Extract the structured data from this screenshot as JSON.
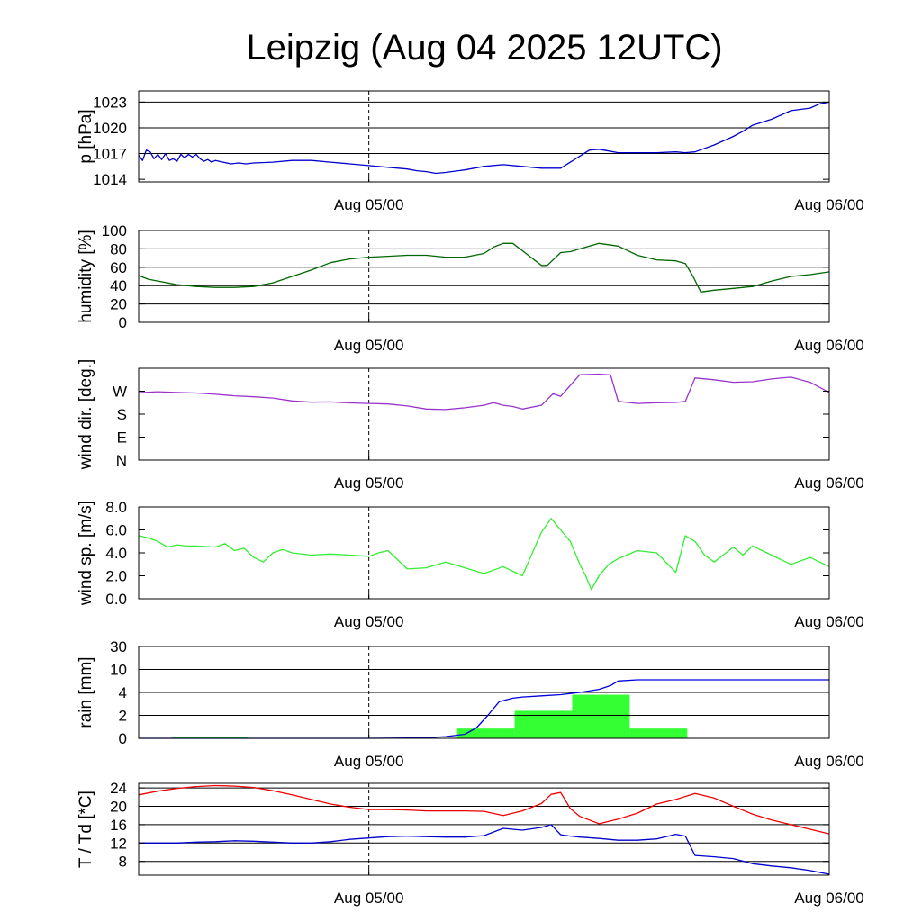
{
  "title": "Leipzig (Aug 04 2025 12UTC)",
  "x_tick_labels": [
    "Aug 05/00",
    "Aug 06/00"
  ],
  "chart_data": [
    {
      "type": "line",
      "ylabel": "p [hPa]",
      "ylim": [
        1013.7,
        1024.3
      ],
      "yticks": [
        1014,
        1017,
        1020,
        1023
      ],
      "ytick_labels": [
        "1014",
        "1017",
        "1020",
        "1023"
      ],
      "grid_y": [
        1017,
        1020,
        1023
      ],
      "xlim": [
        0,
        36
      ],
      "x_tick_hours": [
        12,
        36
      ],
      "x_tick_labels": [
        "Aug 05/00",
        "Aug 06/00"
      ],
      "marker_hour": 12,
      "series": [
        {
          "color": "#0000cc",
          "x": [
            0,
            0.2,
            0.4,
            0.6,
            0.8,
            1.0,
            1.2,
            1.4,
            1.6,
            1.8,
            2.0,
            2.2,
            2.4,
            2.6,
            2.8,
            3.0,
            3.2,
            3.4,
            3.6,
            3.8,
            4.0,
            4.4,
            4.8,
            5.2,
            5.6,
            6,
            7,
            8,
            9,
            10,
            11,
            12,
            13,
            14,
            14.5,
            15,
            15.5,
            16,
            17,
            18,
            19,
            20,
            21,
            22,
            22.5,
            23,
            23.5,
            24,
            24.5,
            25,
            26,
            27,
            28,
            28.5,
            29,
            30,
            31,
            31.5,
            32,
            33,
            34,
            35,
            35.5,
            36
          ],
          "y": [
            1016.8,
            1016.2,
            1017.4,
            1017.2,
            1016.4,
            1016.9,
            1016.3,
            1017.0,
            1016.2,
            1016.4,
            1016.1,
            1016.9,
            1016.5,
            1016.9,
            1016.6,
            1016.9,
            1016.4,
            1016.1,
            1016.3,
            1016.0,
            1016.2,
            1016.0,
            1015.8,
            1015.9,
            1015.8,
            1015.9,
            1016.0,
            1016.2,
            1016.2,
            1016.0,
            1015.8,
            1015.6,
            1015.4,
            1015.2,
            1015.0,
            1014.9,
            1014.7,
            1014.8,
            1015.1,
            1015.5,
            1015.7,
            1015.5,
            1015.3,
            1015.3,
            1016.0,
            1016.7,
            1017.4,
            1017.5,
            1017.3,
            1017.1,
            1017.1,
            1017.1,
            1017.2,
            1017.1,
            1017.2,
            1018.0,
            1019.0,
            1019.6,
            1020.3,
            1021.0,
            1022.0,
            1022.3,
            1022.8,
            1023.0
          ]
        }
      ]
    },
    {
      "type": "line",
      "ylabel": "humidity [%]",
      "ylim": [
        0,
        100
      ],
      "yticks": [
        0,
        20,
        40,
        60,
        80,
        100
      ],
      "ytick_labels": [
        "0",
        "20",
        "40",
        "60",
        "80",
        "100"
      ],
      "grid_y": [
        20,
        40,
        60,
        80,
        100
      ],
      "xlim": [
        0,
        36
      ],
      "x_tick_hours": [
        12,
        36
      ],
      "x_tick_labels": [
        "Aug 05/00",
        "Aug 06/00"
      ],
      "marker_hour": 12,
      "series": [
        {
          "color": "#006600",
          "x": [
            0,
            0.5,
            1,
            2,
            3,
            4,
            5,
            6,
            7,
            8,
            9,
            10,
            11,
            12,
            13,
            14,
            15,
            16,
            17,
            18,
            18.5,
            19,
            19.5,
            20,
            21,
            21.3,
            22,
            22.5,
            23,
            24,
            25,
            26,
            27,
            28,
            28.5,
            28.9,
            29.3,
            30,
            31,
            32,
            33,
            34,
            35,
            36
          ],
          "y": [
            51,
            47,
            45,
            41,
            39,
            38,
            38,
            39,
            43,
            50,
            57,
            65,
            69,
            71,
            72,
            73,
            73,
            71,
            71,
            75,
            82,
            86,
            86,
            78,
            62,
            62,
            76,
            77,
            80,
            86,
            83,
            73,
            68,
            67,
            64,
            50,
            33,
            35,
            37,
            39,
            45,
            50,
            52,
            55
          ]
        }
      ]
    },
    {
      "type": "line",
      "ylabel": "wind dir. [deg.]",
      "ylim": [
        0,
        360
      ],
      "yticks": [
        0,
        90,
        180,
        270
      ],
      "ytick_labels": [
        "N",
        "E",
        "S",
        "W"
      ],
      "grid_y": [],
      "xlim": [
        0,
        36
      ],
      "x_tick_hours": [
        12,
        36
      ],
      "x_tick_labels": [
        "Aug 05/00",
        "Aug 06/00"
      ],
      "marker_hour": 12,
      "series": [
        {
          "color": "#9933cc",
          "x": [
            0,
            1,
            2,
            3,
            4,
            5,
            6,
            7,
            8,
            9,
            10,
            11,
            12,
            13,
            14,
            15,
            16,
            17,
            18,
            18.5,
            19,
            19.5,
            20,
            21,
            21.6,
            22,
            23,
            24,
            24.6,
            25,
            26,
            27,
            28,
            28.5,
            29,
            30,
            31,
            32,
            33,
            34,
            35,
            36
          ],
          "y": [
            264,
            268,
            265,
            263,
            258,
            252,
            248,
            243,
            232,
            227,
            228,
            224,
            222,
            220,
            212,
            200,
            198,
            205,
            215,
            225,
            215,
            210,
            200,
            215,
            260,
            250,
            335,
            337,
            334,
            230,
            222,
            225,
            226,
            230,
            322,
            315,
            305,
            307,
            318,
            325,
            305,
            265
          ]
        }
      ]
    },
    {
      "type": "line",
      "ylabel": "wind sp. [m/s]",
      "ylim": [
        0,
        8
      ],
      "yticks": [
        0,
        2,
        4,
        6,
        8
      ],
      "ytick_labels": [
        "0.0",
        "2.0",
        "4.0",
        "6.0",
        "8.0"
      ],
      "grid_y": [],
      "xlim": [
        0,
        36
      ],
      "x_tick_hours": [
        12,
        36
      ],
      "x_tick_labels": [
        "Aug 05/00",
        "Aug 06/00"
      ],
      "marker_hour": 12,
      "series": [
        {
          "color": "#33ee33",
          "x": [
            0,
            0.5,
            1,
            1.5,
            2,
            2.5,
            3,
            4,
            4.5,
            5,
            5.5,
            6,
            6.5,
            7,
            7.5,
            8,
            9,
            10,
            11,
            12,
            12.5,
            13,
            14,
            15,
            16,
            17,
            18,
            19,
            20,
            21,
            21.5,
            22,
            22.5,
            23,
            23.3,
            23.6,
            24,
            24.5,
            25,
            26,
            27,
            28,
            28.5,
            29,
            29.5,
            30,
            31,
            31.5,
            32,
            33,
            34,
            35,
            36
          ],
          "y": [
            5.5,
            5.3,
            5.0,
            4.5,
            4.7,
            4.6,
            4.6,
            4.5,
            4.8,
            4.2,
            4.4,
            3.6,
            3.2,
            4.0,
            4.3,
            4.0,
            3.8,
            3.9,
            3.8,
            3.7,
            4.0,
            4.2,
            2.6,
            2.7,
            3.2,
            2.7,
            2.2,
            2.8,
            2.0,
            5.8,
            7.0,
            6.0,
            5.0,
            3.0,
            2.0,
            0.8,
            2.0,
            3.0,
            3.5,
            4.2,
            4.0,
            2.3,
            5.5,
            5.0,
            3.8,
            3.2,
            4.5,
            3.8,
            4.6,
            3.8,
            3.0,
            3.6,
            2.8
          ]
        }
      ]
    },
    {
      "type": "line",
      "ylabel": "rain [mm]",
      "ylim": [
        0,
        30
      ],
      "yticks": [
        0,
        2,
        4,
        10,
        30
      ],
      "ytick_labels": [
        "0",
        "2",
        "4",
        "10",
        "30"
      ],
      "grid_y": [
        2,
        4,
        10,
        30
      ],
      "scale": "piecewise",
      "xlim": [
        0,
        36
      ],
      "x_tick_hours": [
        12,
        36
      ],
      "x_tick_labels": [
        "Aug 05/00",
        "Aug 06/00"
      ],
      "marker_hour": 12,
      "bars": {
        "color": "#33ff33",
        "intervals": [
          {
            "x0": 1.7,
            "x1": 5.7,
            "value": 0.1
          },
          {
            "x0": 16.6,
            "x1": 19.6,
            "value": 0.85
          },
          {
            "x0": 19.6,
            "x1": 22.6,
            "value": 2.4
          },
          {
            "x0": 22.6,
            "x1": 25.6,
            "value": 3.8
          },
          {
            "x0": 25.6,
            "x1": 28.6,
            "value": 0.85
          }
        ]
      },
      "series": [
        {
          "color": "#0000dd",
          "x": [
            0,
            12,
            14,
            15,
            16,
            17,
            17.6,
            18.2,
            18.8,
            19.5,
            20,
            21,
            22,
            23,
            24,
            24.6,
            25,
            26,
            30,
            36
          ],
          "y": [
            0,
            0,
            0.02,
            0.05,
            0.15,
            0.35,
            0.9,
            2.0,
            3.2,
            3.5,
            3.6,
            3.7,
            3.8,
            4.0,
            4.8,
            5.8,
            7.0,
            7.3,
            7.3,
            7.3
          ]
        }
      ]
    },
    {
      "type": "line",
      "ylabel": "T / Td [*C]",
      "ylim": [
        5,
        25
      ],
      "yticks": [
        8,
        12,
        16,
        20,
        24
      ],
      "ytick_labels": [
        "8",
        "12",
        "16",
        "20",
        "24"
      ],
      "grid_y": [
        8,
        12,
        16,
        20,
        24
      ],
      "xlim": [
        0,
        36
      ],
      "x_tick_hours": [
        12,
        36
      ],
      "x_tick_labels": [
        "Aug 05/00",
        "Aug 06/00"
      ],
      "marker_hour": 12,
      "series": [
        {
          "color": "#ee0000",
          "x": [
            0,
            1,
            2,
            3,
            4,
            5,
            6,
            7,
            8,
            9,
            10,
            11,
            12,
            13,
            14,
            15,
            16,
            17,
            18,
            19,
            20,
            21,
            21.5,
            22,
            22.5,
            23,
            24,
            25,
            26,
            27,
            28,
            29,
            30,
            31,
            32,
            33,
            34,
            35,
            36
          ],
          "y": [
            22.5,
            23.3,
            23.9,
            24.3,
            24.5,
            24.4,
            24.1,
            23.4,
            22.5,
            21.5,
            20.5,
            19.8,
            19.3,
            19.3,
            19.2,
            19.0,
            19.0,
            19.0,
            18.9,
            18.0,
            19.0,
            20.6,
            22.6,
            23.0,
            19.5,
            17.8,
            16.2,
            17.2,
            18.5,
            20.5,
            21.5,
            22.8,
            21.8,
            20.0,
            18.3,
            17.0,
            16.0,
            15.0,
            14.0
          ]
        },
        {
          "color": "#0000cc",
          "x": [
            0,
            1,
            2,
            3,
            4,
            5,
            6,
            7,
            8,
            9,
            10,
            11,
            12,
            13,
            14,
            15,
            16,
            17,
            18,
            19,
            20,
            21,
            21.5,
            22,
            22.5,
            23,
            24,
            25,
            26,
            27,
            28,
            28.5,
            29,
            30,
            31,
            32,
            33,
            34,
            35,
            36
          ],
          "y": [
            12.0,
            12.0,
            12.0,
            12.2,
            12.3,
            12.5,
            12.4,
            12.2,
            12.0,
            12.0,
            12.3,
            12.8,
            13.1,
            13.4,
            13.5,
            13.4,
            13.3,
            13.3,
            13.6,
            15.2,
            14.8,
            15.4,
            16.0,
            13.8,
            13.5,
            13.3,
            13.0,
            12.6,
            12.6,
            12.9,
            13.9,
            13.5,
            9.3,
            9.0,
            8.6,
            7.5,
            7.0,
            6.6,
            6.0,
            5.2
          ]
        }
      ]
    }
  ]
}
